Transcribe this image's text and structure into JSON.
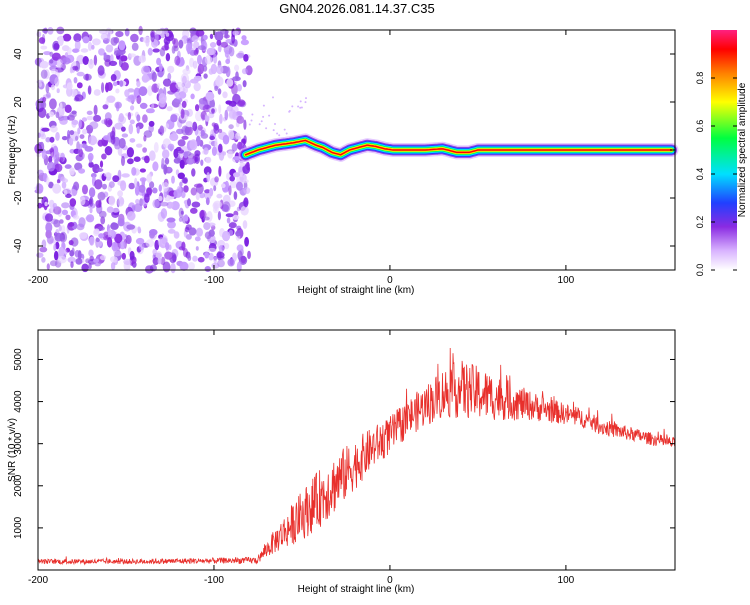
{
  "title": "GN04.2026.081.14.37.C35",
  "colors": {
    "line": "#e8302c",
    "axis": "#000000",
    "noise": "#8a2be2"
  },
  "chart_data": [
    {
      "type": "heatmap",
      "xlabel": "Height of straight line (km)",
      "ylabel": "Frequency (Hz)",
      "xlim": [
        -200,
        162
      ],
      "ylim": [
        -50,
        50
      ],
      "x_ticks": [
        -200,
        -100,
        0,
        100
      ],
      "y_ticks": [
        -40,
        -20,
        0,
        20,
        40
      ],
      "x_tick_labels": [
        "-200",
        "-100",
        "0",
        "100"
      ],
      "y_tick_labels": [
        "-40",
        "-20",
        "0",
        "20",
        "40"
      ],
      "noise_region_x": [
        -200,
        -80
      ],
      "trace": {
        "x": [
          -82,
          -75,
          -65,
          -55,
          -48,
          -42,
          -38,
          -33,
          -28,
          -23,
          -18,
          -13,
          -8,
          -3,
          2,
          10,
          20,
          30,
          38,
          45,
          50,
          60,
          80,
          100,
          130,
          160
        ],
        "y": [
          -2,
          0,
          2,
          3,
          4,
          2,
          1,
          -1,
          -2,
          0,
          1,
          2,
          1.5,
          0.5,
          0,
          0,
          0,
          0.5,
          -1,
          -1,
          0,
          0,
          0,
          0,
          0,
          0
        ]
      },
      "colorbar": {
        "label": "Normalized spectral amplitude",
        "range": [
          0,
          1
        ],
        "ticks": [
          0.0,
          0.2,
          0.4,
          0.6,
          0.8
        ],
        "tick_labels": [
          "0.0",
          "0.2",
          "0.4",
          "0.6",
          "0.8"
        ]
      }
    },
    {
      "type": "line",
      "xlabel": "Height of straight line (km)",
      "ylabel": "SNR (10 * v/v)",
      "xlim": [
        -200,
        162
      ],
      "ylim": [
        0,
        5700
      ],
      "x_ticks": [
        -200,
        -100,
        0,
        100
      ],
      "y_ticks": [
        1000,
        2000,
        3000,
        4000,
        5000
      ],
      "x_tick_labels": [
        "-200",
        "-100",
        "0",
        "100"
      ],
      "y_tick_labels": [
        "1000",
        "2000",
        "3000",
        "4000",
        "5000"
      ],
      "series": [
        {
          "name": "SNR",
          "x": [
            -200,
            -150,
            -100,
            -75,
            -72,
            -65,
            -60,
            -50,
            -40,
            -30,
            -20,
            -10,
            0,
            10,
            20,
            30,
            40,
            50,
            60,
            70,
            80,
            90,
            100,
            110,
            120,
            130,
            140,
            150,
            162
          ],
          "y": [
            200,
            200,
            220,
            230,
            400,
            700,
            900,
            1300,
            1700,
            2100,
            2500,
            2900,
            3200,
            3600,
            3900,
            4200,
            4300,
            4200,
            4100,
            4000,
            3900,
            3800,
            3700,
            3600,
            3400,
            3300,
            3200,
            3100,
            3000
          ],
          "spread": [
            60,
            60,
            70,
            80,
            150,
            300,
            400,
            600,
            700,
            700,
            600,
            500,
            450,
            450,
            500,
            600,
            700,
            650,
            550,
            450,
            350,
            300,
            250,
            220,
            200,
            180,
            160,
            150,
            140
          ]
        }
      ]
    }
  ]
}
